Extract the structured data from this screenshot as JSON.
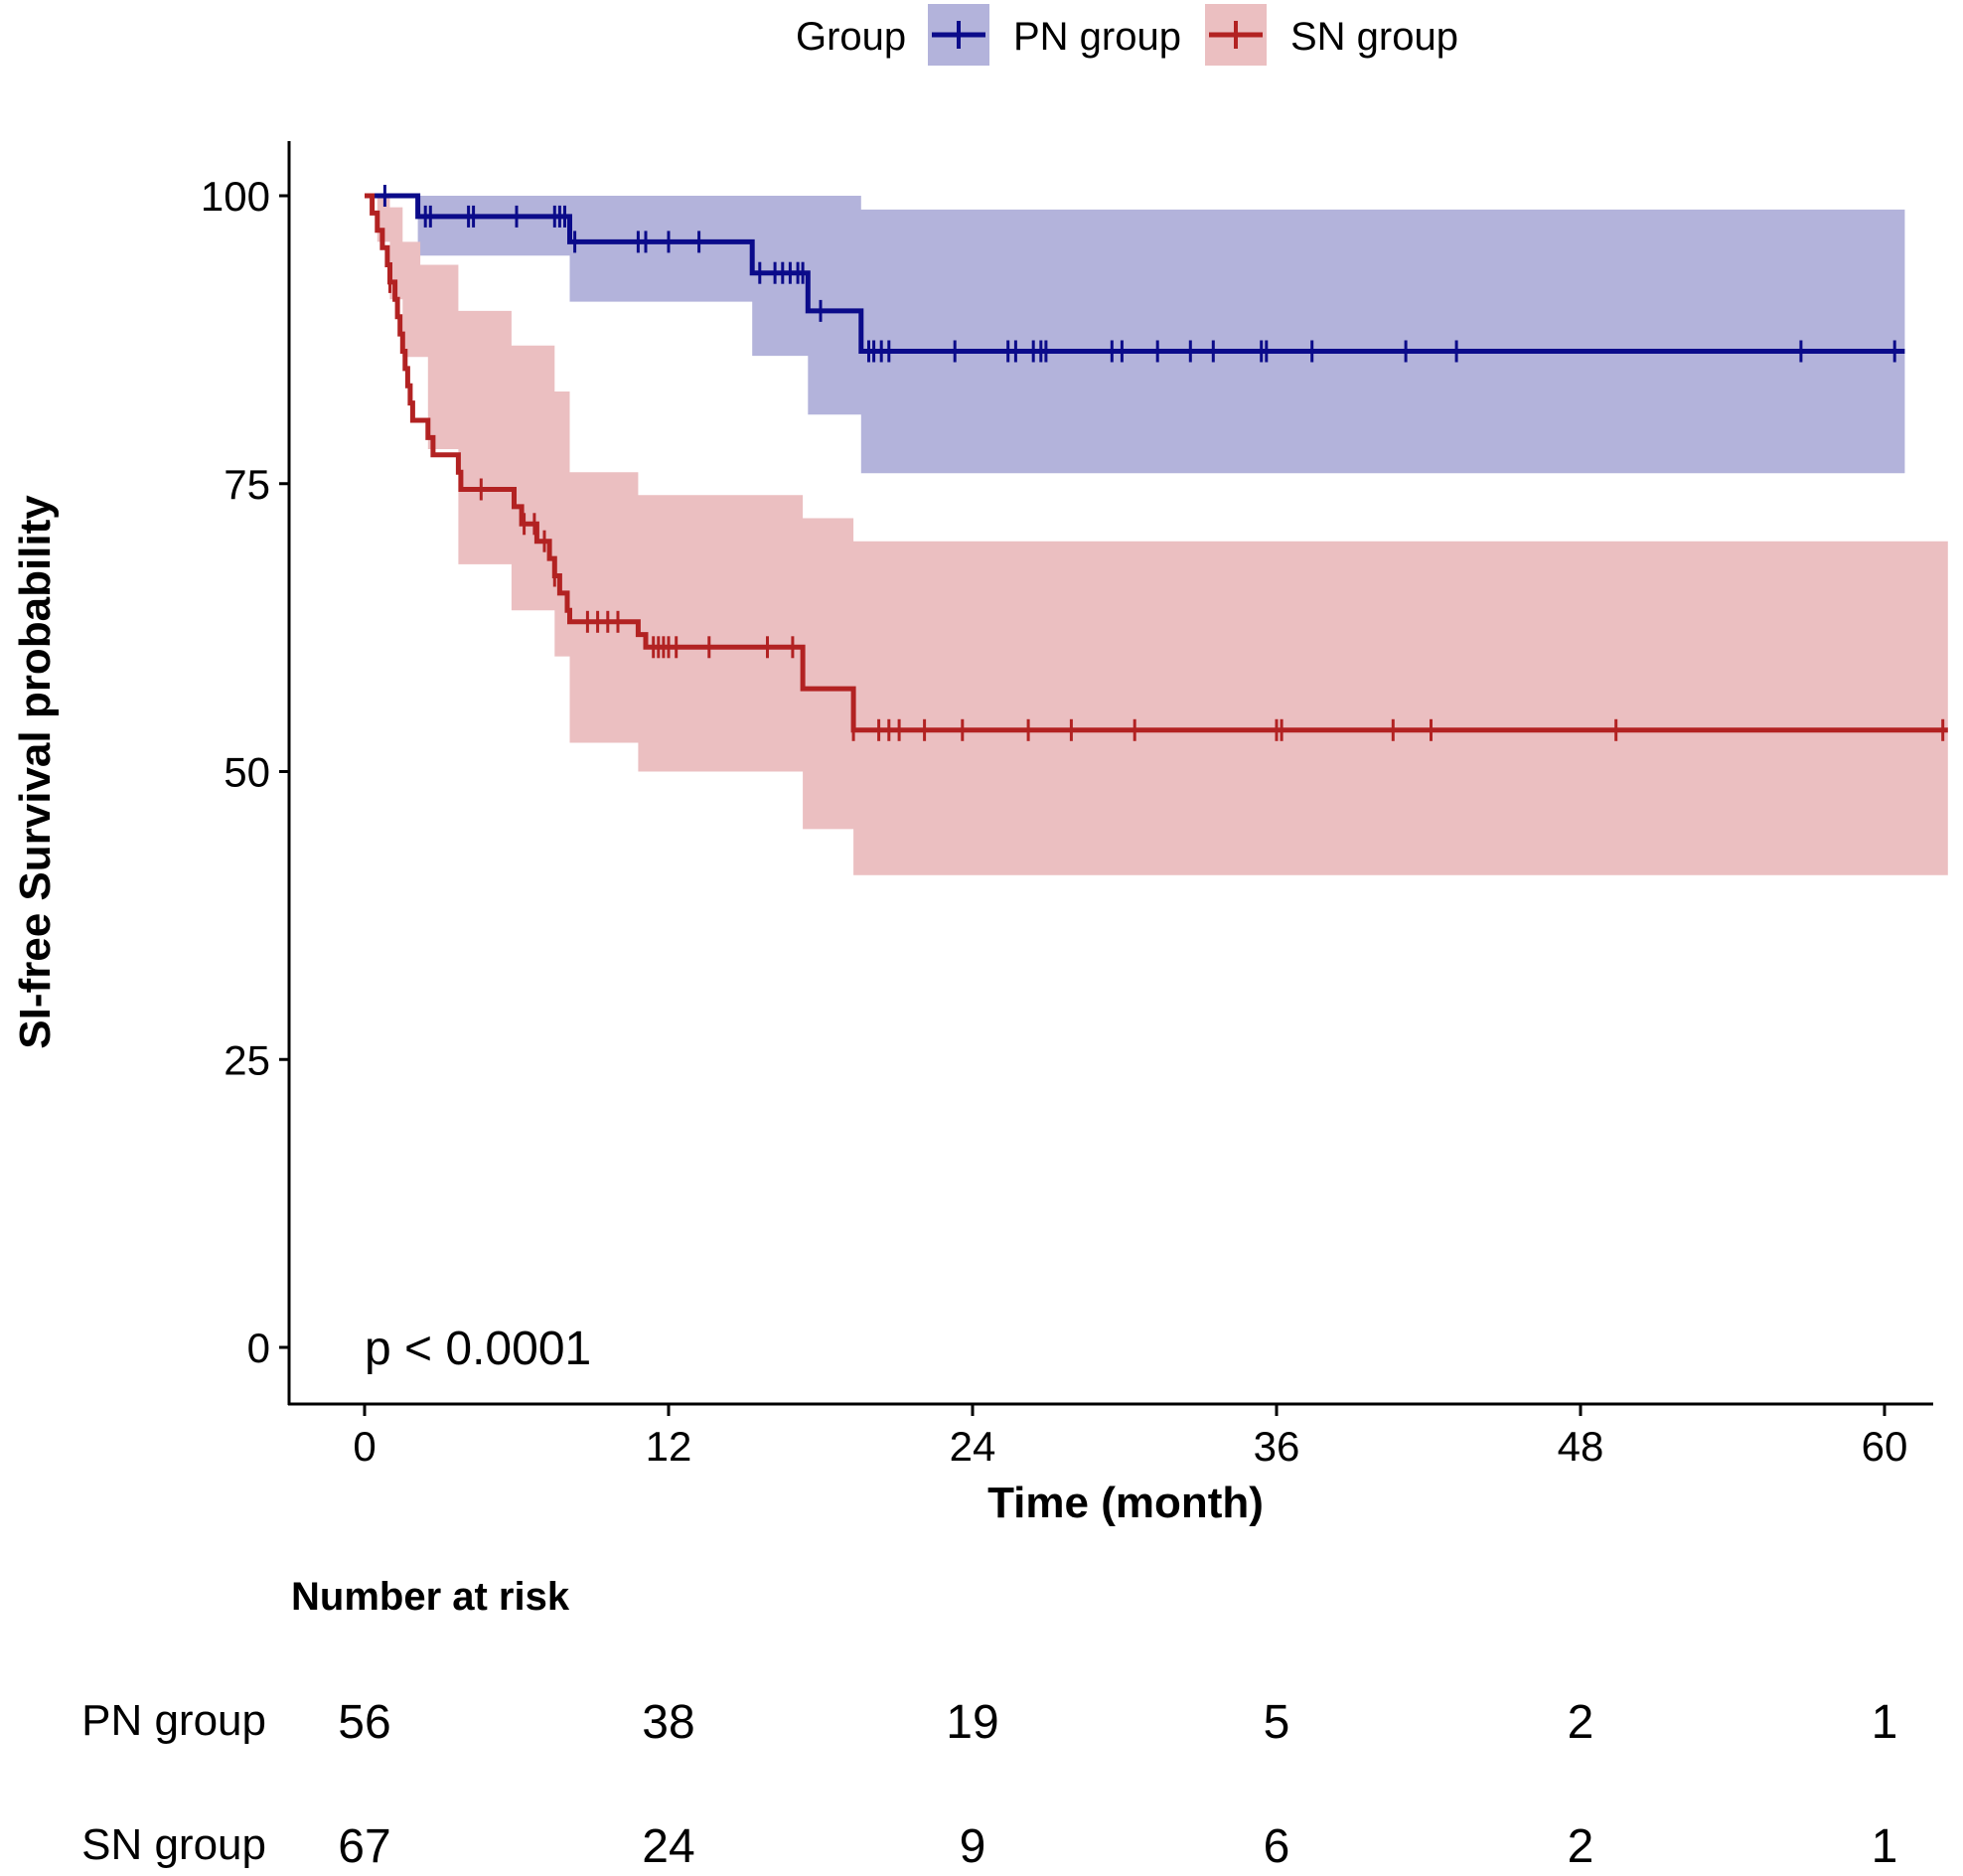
{
  "chart_data": {
    "type": "line",
    "subtype": "kaplan-meier",
    "title": "",
    "xlabel": "Time (month)",
    "ylabel": "SI-free Survival probability",
    "xlim": [
      -5,
      62.5
    ],
    "ylim": [
      -5,
      105
    ],
    "xticks": [
      0,
      12,
      24,
      36,
      48,
      60
    ],
    "yticks": [
      0,
      25,
      50,
      75,
      100
    ],
    "legend": {
      "title": "Group",
      "position": "top",
      "entries": [
        "PN group",
        "SN group"
      ]
    },
    "annotation": "p < 0.0001",
    "colors": {
      "PN group": "#0b0b8a",
      "SN group": "#b22222",
      "PN group_ci": "#b3b3db",
      "SN group_ci": "#ebbfc1"
    },
    "series": [
      {
        "name": "PN group",
        "steps": [
          [
            0,
            100
          ],
          [
            2.1,
            98.2
          ],
          [
            8.1,
            96.0
          ],
          [
            15.3,
            93.3
          ],
          [
            17.5,
            90.0
          ],
          [
            19.6,
            86.5
          ],
          [
            60.8,
            86.5
          ]
        ],
        "ci_upper": [
          [
            0,
            100
          ],
          [
            2.1,
            100
          ],
          [
            8.1,
            100
          ],
          [
            19.6,
            98.8
          ],
          [
            60.8,
            98.8
          ]
        ],
        "ci_lower": [
          [
            0,
            100
          ],
          [
            2.1,
            94.8
          ],
          [
            8.1,
            90.8
          ],
          [
            15.3,
            86.1
          ],
          [
            17.5,
            81.0
          ],
          [
            19.6,
            75.9
          ],
          [
            60.8,
            75.9
          ]
        ],
        "censored": [
          0.8,
          2.4,
          2.6,
          4.1,
          4.3,
          6.0,
          7.5,
          7.7,
          7.9,
          8.3,
          10.8,
          11.1,
          12.0,
          13.2,
          15.6,
          16.2,
          16.5,
          16.8,
          17.1,
          17.3,
          18.0,
          19.9,
          20.1,
          20.4,
          20.7,
          23.3,
          25.4,
          25.7,
          26.4,
          26.7,
          26.9,
          29.5,
          29.9,
          31.3,
          32.6,
          33.5,
          35.4,
          35.6,
          37.4,
          41.1,
          43.1,
          56.7,
          60.4
        ]
      },
      {
        "name": "SN group",
        "steps": [
          [
            0,
            100
          ],
          [
            0.3,
            98.5
          ],
          [
            0.5,
            97.0
          ],
          [
            0.7,
            95.5
          ],
          [
            0.9,
            94.0
          ],
          [
            1.0,
            92.5
          ],
          [
            1.2,
            91.0
          ],
          [
            1.3,
            89.5
          ],
          [
            1.4,
            88.0
          ],
          [
            1.5,
            86.5
          ],
          [
            1.6,
            85.0
          ],
          [
            1.7,
            83.5
          ],
          [
            1.8,
            82.0
          ],
          [
            1.9,
            80.5
          ],
          [
            2.5,
            79.0
          ],
          [
            2.7,
            77.5
          ],
          [
            3.7,
            76.0
          ],
          [
            3.8,
            74.5
          ],
          [
            5.9,
            73.0
          ],
          [
            6.2,
            71.5
          ],
          [
            6.8,
            70.0
          ],
          [
            7.3,
            68.5
          ],
          [
            7.5,
            67.0
          ],
          [
            7.7,
            65.5
          ],
          [
            8.0,
            64.0
          ],
          [
            8.1,
            63.0
          ],
          [
            10.8,
            61.9
          ],
          [
            11.1,
            60.8
          ],
          [
            17.3,
            57.2
          ],
          [
            19.3,
            53.6
          ],
          [
            62.5,
            53.6
          ]
        ],
        "ci_upper": [
          [
            0,
            100
          ],
          [
            0.5,
            100
          ],
          [
            1.0,
            99.0
          ],
          [
            1.5,
            96.0
          ],
          [
            2.2,
            94.0
          ],
          [
            3.7,
            90.0
          ],
          [
            5.8,
            87.0
          ],
          [
            7.5,
            83.0
          ],
          [
            8.1,
            76.0
          ],
          [
            10.8,
            74.0
          ],
          [
            17.3,
            72.0
          ],
          [
            19.3,
            70.0
          ],
          [
            62.5,
            70.0
          ]
        ],
        "ci_lower": [
          [
            0,
            100
          ],
          [
            0.5,
            96.0
          ],
          [
            1.0,
            91.0
          ],
          [
            1.5,
            86.0
          ],
          [
            2.5,
            78.0
          ],
          [
            3.7,
            68.0
          ],
          [
            5.8,
            64.0
          ],
          [
            7.5,
            60.0
          ],
          [
            8.1,
            52.5
          ],
          [
            10.8,
            50.0
          ],
          [
            17.3,
            45.0
          ],
          [
            19.3,
            41.0
          ],
          [
            62.5,
            41.0
          ]
        ],
        "censored": [
          1.0,
          4.6,
          6.3,
          6.7,
          7.1,
          7.5,
          8.8,
          9.2,
          9.6,
          10.0,
          11.4,
          11.6,
          11.8,
          12.0,
          12.3,
          13.6,
          15.9,
          16.9,
          19.3,
          20.3,
          20.7,
          21.1,
          22.1,
          23.6,
          26.2,
          27.9,
          30.4,
          36.0,
          36.2,
          40.6,
          42.1,
          49.4,
          62.3
        ]
      }
    ],
    "risk_table": {
      "title": "Number at risk",
      "times": [
        0,
        12,
        24,
        36,
        48,
        60
      ],
      "rows": [
        {
          "group": "PN group",
          "values": [
            "56",
            "38",
            "19",
            "5",
            "2",
            "1"
          ]
        },
        {
          "group": "SN group",
          "values": [
            "67",
            "24",
            "9",
            "6",
            "2",
            "1"
          ]
        }
      ]
    }
  }
}
